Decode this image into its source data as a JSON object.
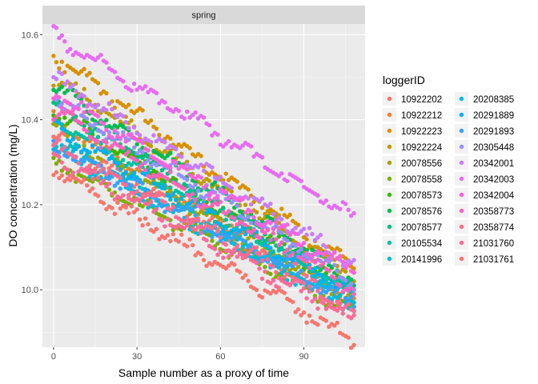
{
  "chart_data": {
    "type": "scatter",
    "facet": "spring",
    "xlabel": "Sample number as a proxy of time",
    "ylabel": "DO concentration (mg/L)",
    "xlim": [
      -4,
      112
    ],
    "ylim": [
      9.865,
      10.625
    ],
    "x_ticks": [
      0,
      30,
      60,
      90
    ],
    "y_ticks": [
      10.0,
      10.2,
      10.4,
      10.6
    ],
    "y_tick_labels": [
      "10.0",
      "10.2",
      "10.4",
      "10.6"
    ],
    "x_range": [
      0,
      108
    ],
    "legend_title": "loggerID",
    "grid": true,
    "legend_position": "right",
    "series": [
      {
        "name": "10922202",
        "color": "#F8766D",
        "start": 10.36,
        "end": 9.96
      },
      {
        "name": "10922212",
        "color": "#EA8331",
        "start": 10.4,
        "end": 9.98
      },
      {
        "name": "10922223",
        "color": "#D89000",
        "start": 10.55,
        "end": 10.05
      },
      {
        "name": "10922224",
        "color": "#C09B00",
        "start": 10.5,
        "end": 10.03
      },
      {
        "name": "20078556",
        "color": "#A3A500",
        "start": 10.38,
        "end": 9.98
      },
      {
        "name": "20078558",
        "color": "#7CAE00",
        "start": 10.3,
        "end": 9.95
      },
      {
        "name": "20078573",
        "color": "#39B600",
        "start": 10.42,
        "end": 10.0
      },
      {
        "name": "20078576",
        "color": "#00BB4E",
        "start": 10.48,
        "end": 10.02
      },
      {
        "name": "20078577",
        "color": "#00BF7D",
        "start": 10.44,
        "end": 10.0
      },
      {
        "name": "20105534",
        "color": "#00C1A3",
        "start": 10.4,
        "end": 9.99
      },
      {
        "name": "20141996",
        "color": "#00BFC4",
        "start": 10.35,
        "end": 9.97
      },
      {
        "name": "20208385",
        "color": "#00BAE0",
        "start": 10.33,
        "end": 9.96
      },
      {
        "name": "20291889",
        "color": "#00B0F6",
        "start": 10.38,
        "end": 9.99
      },
      {
        "name": "20291893",
        "color": "#35A2FF",
        "start": 10.34,
        "end": 9.97
      },
      {
        "name": "20305448",
        "color": "#9590FF",
        "start": 10.45,
        "end": 10.02
      },
      {
        "name": "20342001",
        "color": "#C77CFF",
        "start": 10.5,
        "end": 10.06
      },
      {
        "name": "20342003",
        "color": "#E76BF3",
        "start": 10.6,
        "end": 10.17
      },
      {
        "name": "20342004",
        "color": "#FA62DB",
        "start": 10.46,
        "end": 10.04
      },
      {
        "name": "20358773",
        "color": "#FF62BC",
        "start": 10.42,
        "end": 10.0
      },
      {
        "name": "20358774",
        "color": "#FF6C91",
        "start": 10.34,
        "end": 9.95
      },
      {
        "name": "21031760",
        "color": "#FF6A98",
        "start": 10.31,
        "end": 9.93
      },
      {
        "name": "21031761",
        "color": "#F8766D",
        "start": 10.28,
        "end": 9.88
      }
    ]
  }
}
